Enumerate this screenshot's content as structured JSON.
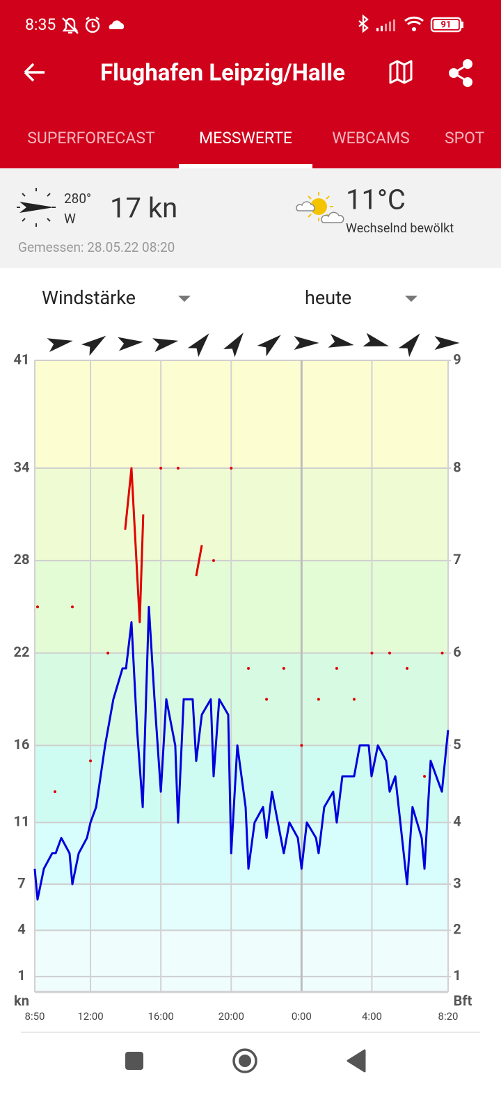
{
  "status_bar": {
    "time": "8:35",
    "battery": "91"
  },
  "header": {
    "title": "Flughafen Leipzig/Halle"
  },
  "tabs": [
    "SUPERFORECAST",
    "MESSWERTE",
    "WEBCAMS",
    "SPOT"
  ],
  "current": {
    "direction_deg": "280°",
    "direction": "W",
    "speed": "17 kn",
    "temperature": "11°C",
    "weather": "Wechselnd bewölkt",
    "measured": "Gemessen: 28.05.22 08:20"
  },
  "controls": {
    "parameter": "Windstärke",
    "period": "heute"
  },
  "chart_data": {
    "type": "line",
    "y_label": "kn",
    "y2_label": "Bft",
    "xlim": [
      8.8333,
      32.3333
    ],
    "xticks": [
      {
        "value": 8.8333,
        "label": "8:50"
      },
      {
        "value": 12,
        "label": "12:00"
      },
      {
        "value": 16,
        "label": "16:00"
      },
      {
        "value": 20,
        "label": "20:00"
      },
      {
        "value": 24,
        "label": "0:00"
      },
      {
        "value": 28,
        "label": "4:00"
      },
      {
        "value": 32.3333,
        "label": "8:20"
      }
    ],
    "ylim": [
      0,
      41
    ],
    "yticks": [
      1,
      4,
      7,
      11,
      16,
      22,
      28,
      34,
      41
    ],
    "y2lim": [
      0,
      41
    ],
    "y2ticks": [
      1,
      {
        "value": 4,
        "label": "2"
      },
      {
        "value": 7,
        "label": "3"
      },
      {
        "value": 11,
        "label": "4"
      },
      {
        "value": 16,
        "label": "5"
      },
      {
        "value": 22,
        "label": "6"
      },
      {
        "value": 28,
        "label": "7"
      },
      {
        "value": 34,
        "label": "8"
      },
      {
        "value": 41,
        "label": "9"
      }
    ],
    "grid": true,
    "band_colors": [
      "#f0fdfd",
      "#f0fdfd",
      "#e4fefe",
      "#d8fdfd",
      "#cffcf2",
      "#d6fbe2",
      "#e3fcd6",
      "#effcd3",
      "#fdfdd2"
    ],
    "directions": [
      260,
      235,
      265,
      260,
      220,
      215,
      230,
      270,
      280,
      285,
      220,
      270
    ],
    "direction_color": "#222222",
    "series": [
      {
        "color": "#0000dd",
        "x": [
          8.83,
          8.99,
          9.35,
          9.82,
          10.02,
          10.34,
          10.81,
          10.97,
          11.33,
          11.8,
          12.0,
          12.32,
          12.83,
          13.3,
          13.82,
          14.02,
          14.33,
          14.65,
          14.97,
          15.32,
          15.64,
          16.0,
          16.31,
          16.82,
          16.98,
          17.3,
          17.81,
          18.01,
          18.33,
          18.84,
          19.0,
          19.32,
          19.83,
          20.0,
          20.35,
          20.82,
          20.98,
          21.33,
          21.81,
          22.01,
          22.32,
          22.99,
          23.31,
          23.79,
          24.0,
          24.3,
          24.82,
          24.97,
          25.29,
          25.8,
          26.0,
          26.32,
          26.99,
          27.31,
          27.82,
          27.98,
          28.34,
          28.81,
          29.01,
          29.33,
          30.0,
          30.31,
          30.83,
          30.99,
          31.34,
          31.98,
          32.33
        ],
        "values": [
          8,
          6,
          8,
          9,
          9,
          10,
          9,
          7,
          9,
          10,
          11,
          12,
          16,
          19,
          21,
          21,
          24,
          17,
          12,
          25,
          19,
          13,
          19,
          16,
          11,
          19,
          19,
          15,
          18,
          19,
          14,
          19,
          18,
          9,
          16,
          12,
          8,
          11,
          12,
          10,
          13,
          9,
          11,
          10,
          8,
          11,
          10,
          9,
          12,
          13,
          11,
          14,
          14,
          16,
          16,
          14,
          16,
          15,
          13,
          14,
          7,
          12,
          10,
          8,
          15,
          13,
          17
        ]
      },
      {
        "color": "#e00000",
        "x": [
          8.99,
          null,
          9.98,
          null,
          10.97,
          null,
          12.0,
          null,
          12.99,
          null,
          13.97,
          14.33,
          14.8,
          15.0,
          null,
          16.0,
          null,
          16.98,
          null,
          18.01,
          18.33,
          null,
          19.0,
          null,
          20.0,
          null,
          20.98,
          null,
          22.01,
          null,
          22.99,
          null,
          24.0,
          null,
          24.97,
          null,
          26.0,
          null,
          26.99,
          null,
          28.0,
          null,
          29.01,
          null,
          30.0,
          null,
          30.99,
          null,
          32.0
        ],
        "values": [
          25,
          null,
          13,
          null,
          25,
          null,
          15,
          null,
          22,
          null,
          30,
          34,
          24,
          31,
          null,
          34,
          null,
          34,
          null,
          27,
          29,
          null,
          28,
          null,
          34,
          null,
          21,
          null,
          19,
          null,
          21,
          null,
          16,
          null,
          19,
          null,
          21,
          null,
          19,
          null,
          22,
          null,
          22,
          null,
          21,
          null,
          14,
          null,
          22
        ]
      }
    ]
  }
}
